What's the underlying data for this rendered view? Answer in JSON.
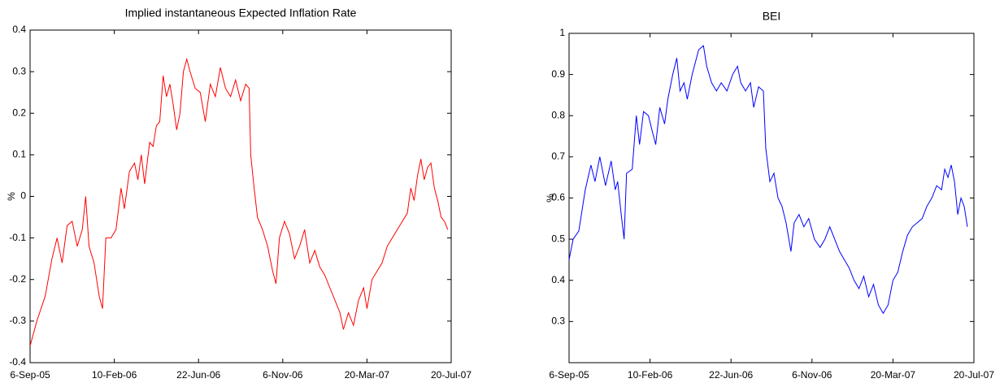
{
  "chart_data": [
    {
      "type": "line",
      "title": "Implied instantaneous Expected Inflation Rate",
      "ylabel": "%",
      "color": "#ff0000",
      "xlim": [
        0,
        500
      ],
      "xticks": [
        {
          "value": 0,
          "label": "6-Sep-05"
        },
        {
          "value": 100,
          "label": "10-Feb-06"
        },
        {
          "value": 200,
          "label": "22-Jun-06"
        },
        {
          "value": 300,
          "label": "6-Nov-06"
        },
        {
          "value": 400,
          "label": "20-Mar-07"
        },
        {
          "value": 500,
          "label": "20-Jul-07"
        }
      ],
      "ylim": [
        -0.4,
        0.4
      ],
      "yticks": [
        -0.4,
        -0.3,
        -0.2,
        -0.1,
        0,
        0.1,
        0.2,
        0.3,
        0.4
      ],
      "x": [
        0,
        8,
        18,
        26,
        32,
        38,
        44,
        50,
        56,
        62,
        66,
        70,
        76,
        82,
        86,
        90,
        96,
        102,
        108,
        112,
        118,
        124,
        128,
        132,
        136,
        142,
        146,
        150,
        154,
        158,
        162,
        166,
        170,
        174,
        178,
        182,
        186,
        190,
        196,
        202,
        208,
        214,
        220,
        226,
        232,
        238,
        244,
        250,
        256,
        260,
        262,
        266,
        270,
        276,
        282,
        288,
        292,
        296,
        302,
        308,
        314,
        320,
        326,
        332,
        338,
        344,
        350,
        356,
        362,
        368,
        372,
        378,
        384,
        390,
        396,
        400,
        406,
        412,
        418,
        424,
        430,
        436,
        442,
        448,
        452,
        456,
        460,
        464,
        468,
        472,
        476,
        480,
        484,
        488,
        492,
        496
      ],
      "values": [
        -0.36,
        -0.3,
        -0.24,
        -0.15,
        -0.1,
        -0.16,
        -0.07,
        -0.06,
        -0.12,
        -0.08,
        0.0,
        -0.12,
        -0.16,
        -0.24,
        -0.27,
        -0.1,
        -0.1,
        -0.08,
        0.02,
        -0.03,
        0.06,
        0.08,
        0.04,
        0.1,
        0.03,
        0.13,
        0.12,
        0.17,
        0.18,
        0.29,
        0.24,
        0.27,
        0.22,
        0.16,
        0.2,
        0.3,
        0.33,
        0.3,
        0.26,
        0.25,
        0.18,
        0.27,
        0.24,
        0.31,
        0.26,
        0.24,
        0.28,
        0.23,
        0.27,
        0.26,
        0.1,
        0.02,
        -0.05,
        -0.08,
        -0.12,
        -0.18,
        -0.21,
        -0.1,
        -0.06,
        -0.09,
        -0.15,
        -0.12,
        -0.08,
        -0.16,
        -0.13,
        -0.17,
        -0.19,
        -0.22,
        -0.25,
        -0.28,
        -0.32,
        -0.28,
        -0.31,
        -0.25,
        -0.22,
        -0.27,
        -0.2,
        -0.18,
        -0.16,
        -0.12,
        -0.1,
        -0.08,
        -0.06,
        -0.04,
        0.02,
        -0.01,
        0.05,
        0.09,
        0.04,
        0.07,
        0.08,
        0.02,
        -0.01,
        -0.05,
        -0.06,
        -0.08
      ]
    },
    {
      "type": "line",
      "title": "BEI",
      "ylabel": "%",
      "color": "#0000ff",
      "xlim": [
        0,
        500
      ],
      "xticks": [
        {
          "value": 0,
          "label": "6-Sep-05"
        },
        {
          "value": 100,
          "label": "10-Feb-06"
        },
        {
          "value": 200,
          "label": "22-Jun-06"
        },
        {
          "value": 300,
          "label": "6-Nov-06"
        },
        {
          "value": 400,
          "label": "20-Mar-07"
        },
        {
          "value": 500,
          "label": "20-Jul-07"
        }
      ],
      "ylim": [
        0.2,
        1
      ],
      "yticks": [
        0.3,
        0.4,
        0.5,
        0.6,
        0.7,
        0.8,
        0.9,
        1
      ],
      "x": [
        0,
        5,
        12,
        20,
        27,
        32,
        38,
        45,
        52,
        57,
        60,
        65,
        68,
        71,
        78,
        83,
        87,
        92,
        98,
        103,
        107,
        112,
        118,
        122,
        128,
        133,
        137,
        142,
        146,
        152,
        160,
        166,
        170,
        176,
        182,
        188,
        195,
        202,
        208,
        212,
        218,
        224,
        228,
        234,
        240,
        243,
        248,
        253,
        258,
        263,
        268,
        274,
        278,
        284,
        290,
        296,
        303,
        310,
        316,
        322,
        328,
        334,
        340,
        346,
        352,
        358,
        364,
        370,
        376,
        382,
        388,
        394,
        400,
        406,
        412,
        418,
        424,
        430,
        436,
        442,
        448,
        454,
        460,
        464,
        468,
        472,
        476,
        480,
        484,
        488,
        492
      ],
      "values": [
        0.45,
        0.5,
        0.52,
        0.62,
        0.68,
        0.64,
        0.7,
        0.63,
        0.69,
        0.62,
        0.64,
        0.55,
        0.5,
        0.66,
        0.67,
        0.8,
        0.73,
        0.81,
        0.8,
        0.76,
        0.73,
        0.82,
        0.78,
        0.84,
        0.9,
        0.94,
        0.86,
        0.88,
        0.84,
        0.9,
        0.96,
        0.97,
        0.92,
        0.88,
        0.86,
        0.88,
        0.86,
        0.9,
        0.92,
        0.88,
        0.86,
        0.88,
        0.82,
        0.87,
        0.86,
        0.72,
        0.64,
        0.66,
        0.6,
        0.58,
        0.54,
        0.47,
        0.54,
        0.56,
        0.53,
        0.55,
        0.5,
        0.48,
        0.5,
        0.53,
        0.5,
        0.47,
        0.45,
        0.43,
        0.4,
        0.38,
        0.41,
        0.36,
        0.39,
        0.34,
        0.32,
        0.34,
        0.4,
        0.42,
        0.47,
        0.51,
        0.53,
        0.54,
        0.55,
        0.58,
        0.6,
        0.63,
        0.62,
        0.67,
        0.65,
        0.68,
        0.64,
        0.56,
        0.6,
        0.58,
        0.53
      ]
    }
  ]
}
